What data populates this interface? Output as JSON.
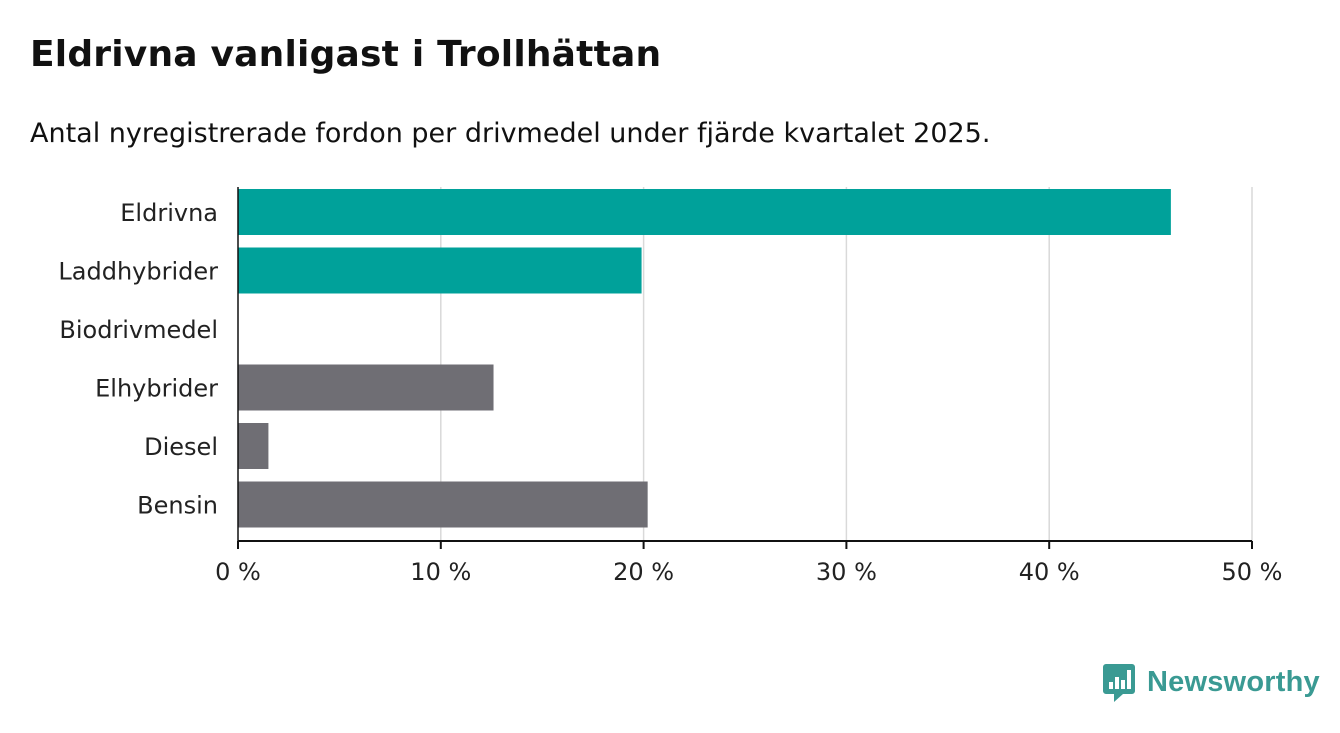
{
  "header": {
    "title": "Eldrivna vanligast i Trollhättan",
    "subtitle": "Antal nyregistrerade fordon per drivmedel under fjärde kvartalet 2025."
  },
  "brand": {
    "name": "Newsworthy",
    "color": "#3a9a93"
  },
  "colors": {
    "highlight": "#00a19a",
    "other": "#6f6e74",
    "grid": "#d9d9d9",
    "axis": "#111111"
  },
  "chart_data": {
    "type": "bar",
    "orientation": "horizontal",
    "title": "Eldrivna vanligast i Trollhättan",
    "subtitle": "Antal nyregistrerade fordon per drivmedel under fjärde kvartalet 2025.",
    "categories": [
      "Eldrivna",
      "Laddhybrider",
      "Biodrivmedel",
      "Elhybrider",
      "Diesel",
      "Bensin"
    ],
    "values": [
      46.0,
      19.9,
      0,
      12.6,
      1.5,
      20.2
    ],
    "highlighted": [
      true,
      true,
      false,
      false,
      false,
      false
    ],
    "unit": "%",
    "xlim": [
      0,
      50
    ],
    "ticks": [
      0,
      10,
      20,
      30,
      40,
      50
    ],
    "tick_labels": [
      "0 %",
      "10 %",
      "20 %",
      "30 %",
      "40 %",
      "50 %"
    ],
    "xlabel": "",
    "ylabel": "",
    "grid": true
  }
}
